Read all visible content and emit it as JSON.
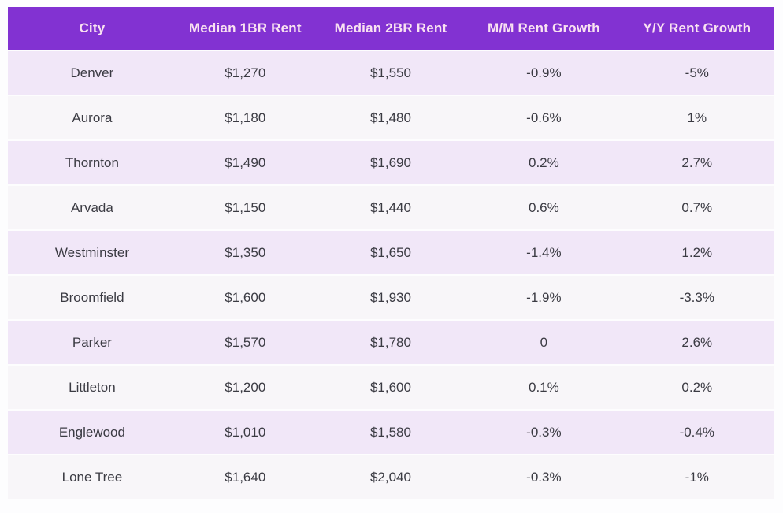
{
  "colors": {
    "page_bg": "#fdfdfe",
    "header_bg": "#8232d2",
    "header_text": "#f9e2f1",
    "row_odd_bg": "#f1e7f8",
    "row_even_bg": "#f8f6f9",
    "body_text": "#3b3b43"
  },
  "chart_data": {
    "type": "table",
    "title": "",
    "columns": [
      "City",
      "Median 1BR Rent",
      "Median 2BR Rent",
      "M/M Rent Growth",
      "Y/Y Rent Growth"
    ],
    "column_keys": [
      "city",
      "median_1br_rent",
      "median_2br_rent",
      "mm_rent_growth",
      "yy_rent_growth"
    ],
    "rows": [
      {
        "city": "Denver",
        "median_1br_rent": "$1,270",
        "median_2br_rent": "$1,550",
        "mm_rent_growth": "-0.9%",
        "yy_rent_growth": "-5%"
      },
      {
        "city": "Aurora",
        "median_1br_rent": "$1,180",
        "median_2br_rent": "$1,480",
        "mm_rent_growth": "-0.6%",
        "yy_rent_growth": "1%"
      },
      {
        "city": "Thornton",
        "median_1br_rent": "$1,490",
        "median_2br_rent": "$1,690",
        "mm_rent_growth": "0.2%",
        "yy_rent_growth": "2.7%"
      },
      {
        "city": "Arvada",
        "median_1br_rent": "$1,150",
        "median_2br_rent": "$1,440",
        "mm_rent_growth": "0.6%",
        "yy_rent_growth": "0.7%"
      },
      {
        "city": "Westminster",
        "median_1br_rent": "$1,350",
        "median_2br_rent": "$1,650",
        "mm_rent_growth": "-1.4%",
        "yy_rent_growth": "1.2%"
      },
      {
        "city": "Broomfield",
        "median_1br_rent": "$1,600",
        "median_2br_rent": "$1,930",
        "mm_rent_growth": "-1.9%",
        "yy_rent_growth": "-3.3%"
      },
      {
        "city": "Parker",
        "median_1br_rent": "$1,570",
        "median_2br_rent": "$1,780",
        "mm_rent_growth": "0",
        "yy_rent_growth": "2.6%"
      },
      {
        "city": "Littleton",
        "median_1br_rent": "$1,200",
        "median_2br_rent": "$1,600",
        "mm_rent_growth": "0.1%",
        "yy_rent_growth": "0.2%"
      },
      {
        "city": "Englewood",
        "median_1br_rent": "$1,010",
        "median_2br_rent": "$1,580",
        "mm_rent_growth": "-0.3%",
        "yy_rent_growth": "-0.4%"
      },
      {
        "city": "Lone Tree",
        "median_1br_rent": "$1,640",
        "median_2br_rent": "$2,040",
        "mm_rent_growth": "-0.3%",
        "yy_rent_growth": "-1%"
      }
    ]
  }
}
